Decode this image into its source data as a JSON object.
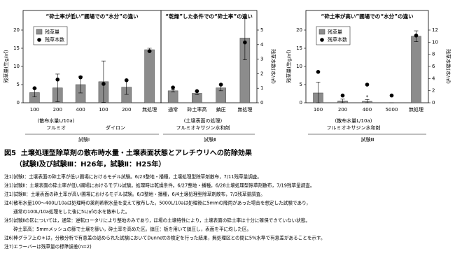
{
  "chart_data": [
    {
      "type": "bar",
      "title": "“砕土率が低い”圃場での“水分”の違い",
      "ylabel": "残草量(生g/㎡)",
      "categories": [
        "100",
        "200",
        "400",
        "100",
        "200",
        "無処理"
      ],
      "series": [
        {
          "name": "残草量",
          "color": "#8c8c8c",
          "values": [
            2.8,
            4.1,
            5.0,
            5.8,
            4.3,
            14.6
          ],
          "errors": [
            1.2,
            3.8,
            2.3,
            5.7,
            2.0,
            0.4
          ]
        },
        {
          "name": "残草本数",
          "color": "#000000",
          "axis": "y2",
          "values": [
            1.0,
            1.6,
            1.75,
            1.3,
            1.55,
            3.55
          ]
        }
      ],
      "ylim": [
        0,
        20
      ],
      "yticks": [
        0,
        5,
        10,
        15,
        20
      ],
      "y2lim": [
        0,
        5
      ],
      "legend": "upper left",
      "notes_below": [
        "(散布水量L/10a)",
        "フルミオ",
        "ダイロン",
        "試験Ⅰ"
      ]
    },
    {
      "type": "bar",
      "title": "“乾燥”した条件での“砕土率”の違い",
      "y2label": "残草本数(本/㎡)",
      "categories": [
        "通常",
        "砕土率高",
        "鎮圧",
        "無処理"
      ],
      "series": [
        {
          "color": "#8c8c8c",
          "values": [
            3.3,
            2.6,
            4.1,
            17.8
          ],
          "errors": [
            0.3,
            0.4,
            0.8,
            6.0
          ]
        },
        {
          "color": "#000000",
          "axis": "y2",
          "values": [
            1.05,
            0.8,
            1.25,
            4.15
          ]
        }
      ],
      "ylim": [
        0,
        20
      ],
      "y2lim": [
        0,
        5
      ],
      "y2ticks": [
        0,
        1,
        2,
        3,
        4,
        5
      ],
      "notes_below": [
        "(土壌表面の処理)",
        "フルミオキサジン水和剤",
        "試験Ⅱ"
      ]
    },
    {
      "type": "bar",
      "title": "“砕土率が高い”圃場での“水分”の違い",
      "ylabel": "残草量(生g/㎡)",
      "y2label": "残草本数(本/㎡)",
      "categories": [
        "100",
        "200",
        "400",
        "5000",
        "無処理"
      ],
      "series": [
        {
          "name": "残草量",
          "color": "#8c8c8c",
          "values": [
            2.7,
            0.5,
            0.4,
            0,
            18.3
          ],
          "errors": [
            3.0,
            0.5,
            0.5,
            0,
            1.5
          ]
        },
        {
          "name": "残草本数",
          "color": "#000000",
          "axis": "y2",
          "values": [
            5.1,
            1.2,
            3.0,
            1.2,
            11.1
          ]
        }
      ],
      "significance": [
        null,
        "*",
        "*",
        null,
        null
      ],
      "ylim": [
        0,
        20
      ],
      "yticks": [
        0,
        5,
        10,
        15,
        20
      ],
      "y2lim": [
        0,
        12
      ],
      "y2ticks": [
        0,
        2,
        4,
        6,
        8,
        10,
        12
      ],
      "legend": "upper left",
      "notes_below": [
        "(散布水量L/10a)",
        "フルミオキサジン水和剤",
        "試験Ⅲ"
      ]
    }
  ],
  "caption": [
    "図5  土壌処理型除草剤の散布時水量・土壌表面状態とアレチウリへの防除効果",
    "（試験Ⅰ及び試験Ⅲ：H26年，試験Ⅱ：H25年）"
  ],
  "notes": [
    "注1)試験Ⅰ：土壌表面の砕土率が低い圃場におけるモデル試験。6/23整地・播種，土壌処理型除草剤散布，7/11残草量調査。",
    "注1)試験Ⅱ：土壌表面の砕土率が低い圃場におけるモデル試験。処理時は乾燥条件。6/27整地・播種，6/28土壌処理型除草剤散布，7/19残草量調査。",
    "注1)試験Ⅲ：土壌表面の砕土率が高い圃場におけるモデル試験。6/3整地・播種，6/4土壌処理型除草剤散布，7/3残草量調査。",
    "注4)散布水量100～400L/10aは処理時の薬剤希釈水量を変えて散布した。5000L/10aは処理後に5mmの降雨があった場合を想定した試験であり，",
    "　　通常の100L/10a処理をした後に5L/㎡の水を散布した。",
    "注5)試験Ⅱの区については，通常：逆転ロータリにより整地のみであり，ほ場の土壌特性により，土壌表面の砕土率は十分に確保できていない状態。",
    "　　砕土率高：5mmメッシュの篩で土壌を篩い，砕土率を高めた区。鎮圧：板を用いて鎮圧し，表面を平に均した区。",
    "注6)棒グラフ上の＊は，分散分析で有意差の認められた試験においてDunnettの検定を行った結果，無処理区との間に5%水準で有意差があることを示す。",
    "注7)エラーバーは残草量の標準誤差(n=2)"
  ]
}
